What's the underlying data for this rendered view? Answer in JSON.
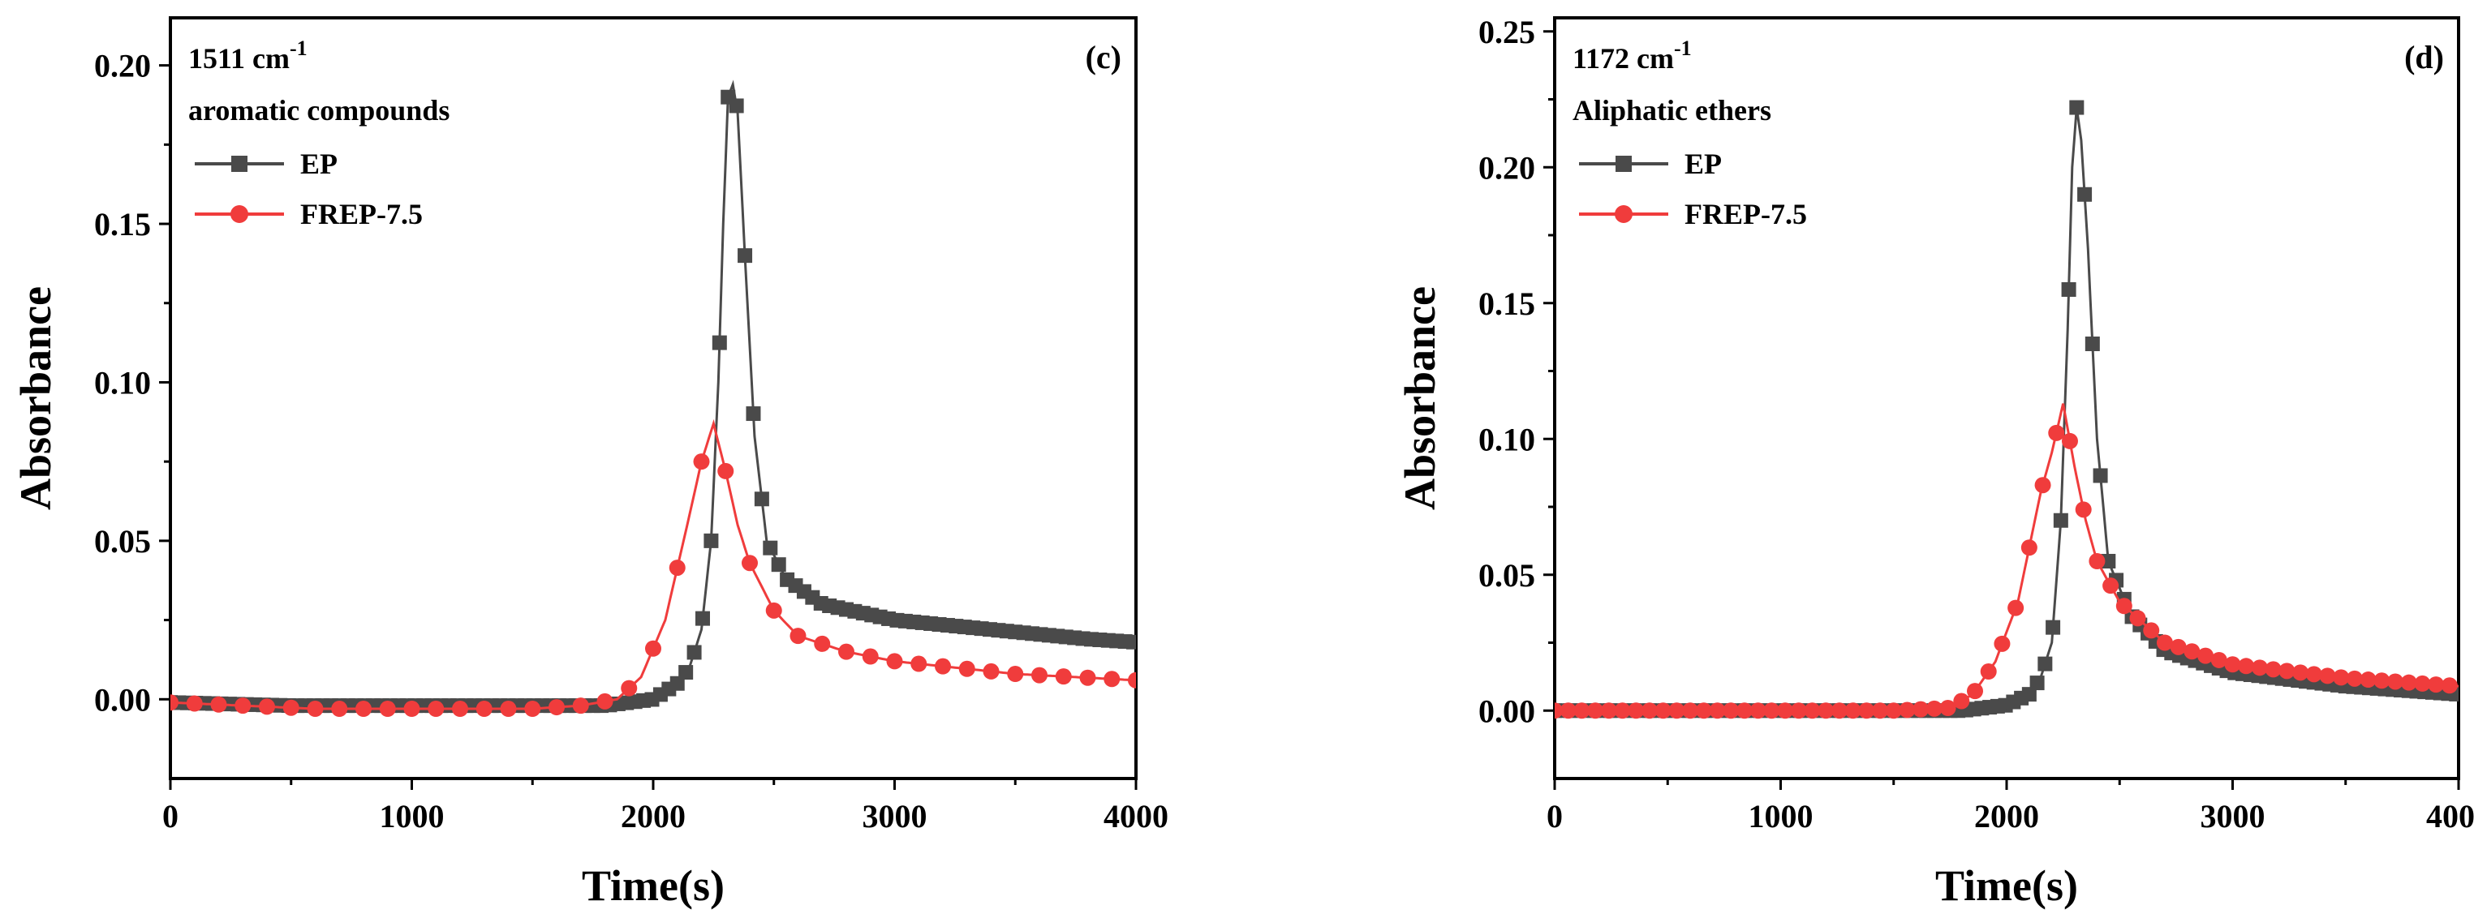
{
  "chart_data": [
    {
      "type": "line",
      "panel_label": "(c)",
      "annotation": {
        "wavenumber": "1511 cm",
        "superscript": "-1",
        "compound": "aromatic compounds"
      },
      "xlabel": "Time(s)",
      "ylabel": "Absorbance",
      "xlim": [
        0,
        4000
      ],
      "ylim": [
        -0.025,
        0.215
      ],
      "xticks": [
        0,
        1000,
        2000,
        3000,
        4000
      ],
      "xtick_labels": [
        "0",
        "1000",
        "2000",
        "3000",
        "4000"
      ],
      "yticks": [
        0.0,
        0.05,
        0.1,
        0.15,
        0.2
      ],
      "ytick_labels": [
        "0.00",
        "0.05",
        "0.10",
        "0.15",
        "0.20"
      ],
      "legend_position": "top-left",
      "series": [
        {
          "name": "EP",
          "color": "#4a4a4a",
          "marker": "square",
          "marker_step": 35,
          "x": [
            0,
            500,
            1000,
            1500,
            1800,
            2000,
            2100,
            2150,
            2200,
            2240,
            2270,
            2290,
            2310,
            2330,
            2350,
            2380,
            2420,
            2470,
            2550,
            2700,
            3000,
            3400,
            3800,
            4000
          ],
          "y": [
            -0.001,
            -0.002,
            -0.002,
            -0.002,
            -0.002,
            0.0,
            0.005,
            0.01,
            0.022,
            0.05,
            0.1,
            0.15,
            0.19,
            0.194,
            0.185,
            0.14,
            0.083,
            0.05,
            0.038,
            0.03,
            0.025,
            0.022,
            0.019,
            0.018
          ]
        },
        {
          "name": "FREP-7.5",
          "color": "#f03c3c",
          "marker": "circle",
          "marker_step": 100,
          "x": [
            0,
            300,
            600,
            900,
            1200,
            1500,
            1700,
            1850,
            1950,
            2050,
            2150,
            2200,
            2250,
            2300,
            2350,
            2400,
            2500,
            2600,
            2800,
            3000,
            3500,
            4000
          ],
          "y": [
            -0.001,
            -0.002,
            -0.003,
            -0.003,
            -0.003,
            -0.003,
            -0.002,
            0.0,
            0.007,
            0.025,
            0.058,
            0.075,
            0.087,
            0.072,
            0.055,
            0.043,
            0.028,
            0.02,
            0.015,
            0.012,
            0.008,
            0.006
          ]
        }
      ]
    },
    {
      "type": "line",
      "panel_label": "(d)",
      "annotation": {
        "wavenumber": "1172 cm",
        "superscript": "-1",
        "compound": "Aliphatic ethers"
      },
      "xlabel": "Time(s)",
      "ylabel": "Absorbance",
      "xlim": [
        0,
        4000
      ],
      "ylim": [
        -0.025,
        0.255
      ],
      "xticks": [
        0,
        1000,
        2000,
        3000,
        4000
      ],
      "xtick_labels": [
        "0",
        "1000",
        "2000",
        "3000",
        "4000"
      ],
      "yticks": [
        0.0,
        0.05,
        0.1,
        0.15,
        0.2,
        0.25
      ],
      "ytick_labels": [
        "0.00",
        "0.05",
        "0.10",
        "0.15",
        "0.20",
        "0.25"
      ],
      "legend_position": "top-left",
      "series": [
        {
          "name": "EP",
          "color": "#4a4a4a",
          "marker": "square",
          "marker_step": 35,
          "x": [
            0,
            500,
            1000,
            1500,
            1800,
            2000,
            2100,
            2150,
            2200,
            2240,
            2270,
            2290,
            2310,
            2330,
            2360,
            2400,
            2450,
            2550,
            2700,
            3000,
            3500,
            4000
          ],
          "y": [
            0.0,
            0.0,
            0.0,
            0.0,
            0.0,
            0.002,
            0.006,
            0.012,
            0.025,
            0.07,
            0.14,
            0.2,
            0.222,
            0.21,
            0.17,
            0.1,
            0.055,
            0.035,
            0.022,
            0.014,
            0.009,
            0.006
          ]
        },
        {
          "name": "FREP-7.5",
          "color": "#f03c3c",
          "marker": "circle",
          "marker_step": 60,
          "x": [
            0,
            500,
            1000,
            1500,
            1750,
            1850,
            1950,
            2050,
            2150,
            2200,
            2250,
            2300,
            2350,
            2400,
            2500,
            2700,
            3000,
            3500,
            4000
          ],
          "y": [
            0.0,
            0.0,
            0.0,
            0.0,
            0.001,
            0.006,
            0.018,
            0.04,
            0.08,
            0.095,
            0.113,
            0.09,
            0.07,
            0.055,
            0.04,
            0.025,
            0.017,
            0.012,
            0.009
          ]
        }
      ]
    }
  ]
}
